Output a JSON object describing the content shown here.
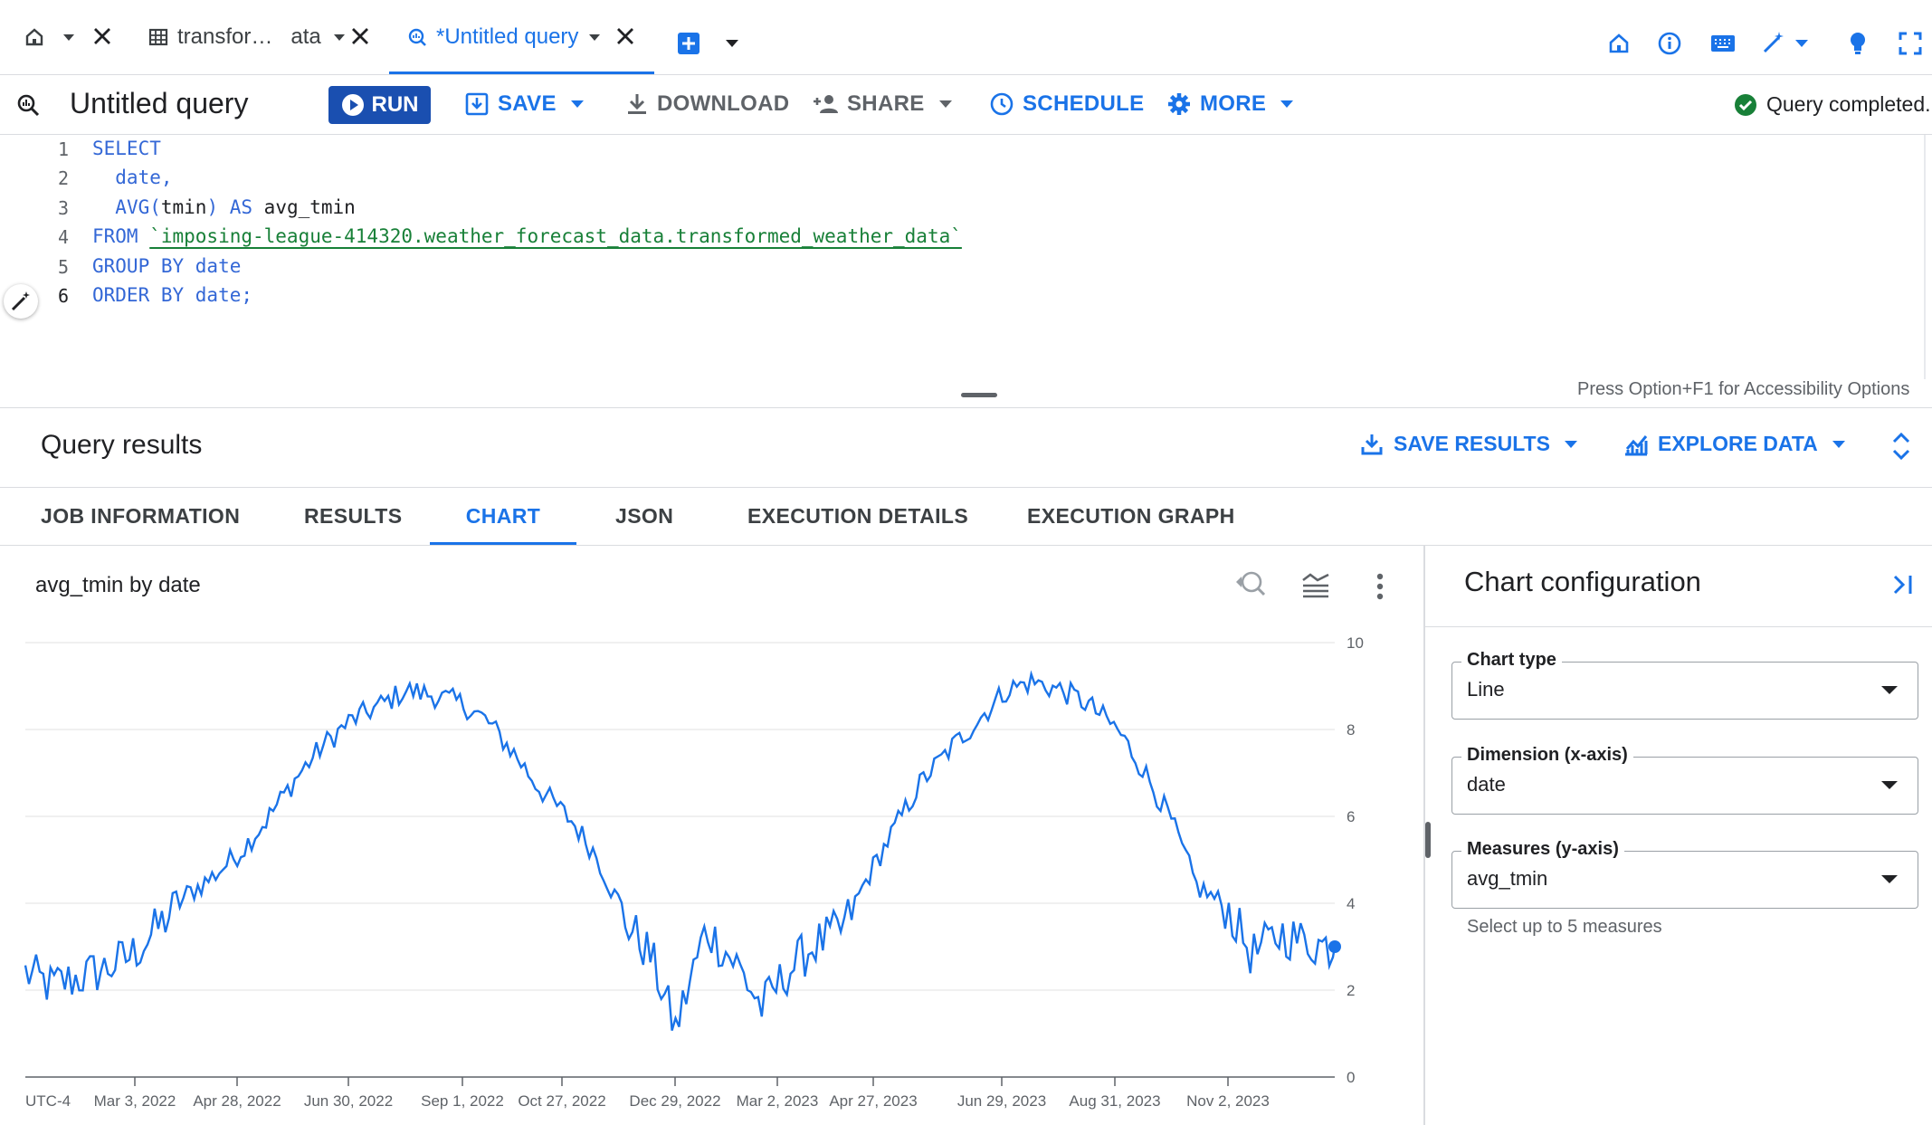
{
  "tabs": [
    {
      "label": "transfor…   ata"
    },
    {
      "label": "*Untitled query"
    }
  ],
  "toolbar": {
    "title": "Untitled query",
    "run": "RUN",
    "save": "SAVE",
    "download": "DOWNLOAD",
    "share": "SHARE",
    "schedule": "SCHEDULE",
    "more": "MORE",
    "status": "Query completed."
  },
  "editor": {
    "lines": [
      {
        "n": "1",
        "kw1": "SELECT",
        "rest": ""
      },
      {
        "n": "2",
        "text": "  date,"
      },
      {
        "n": "3",
        "text": "  AVG(tmin) AS avg_tmin"
      },
      {
        "n": "4",
        "kw1": "FROM ",
        "table": "`imposing-league-414320.weather_forecast_data.transformed_weather_data`"
      },
      {
        "n": "5",
        "text": "GROUP BY date"
      },
      {
        "n": "6",
        "text": "ORDER BY date;"
      }
    ],
    "accessibility": "Press Option+F1 for Accessibility Options"
  },
  "results": {
    "title": "Query results",
    "save_results": "SAVE RESULTS",
    "explore_data": "EXPLORE DATA",
    "tabs": [
      "JOB INFORMATION",
      "RESULTS",
      "CHART",
      "JSON",
      "EXECUTION DETAILS",
      "EXECUTION GRAPH"
    ]
  },
  "config": {
    "title": "Chart configuration",
    "chart_type_label": "Chart type",
    "chart_type_value": "Line",
    "dimension_label": "Dimension (x-axis)",
    "dimension_value": "date",
    "measures_label": "Measures (y-axis)",
    "measures_value": "avg_tmin",
    "measures_hint": "Select up to 5 measures"
  },
  "colors": {
    "accent": "#1a73e8",
    "success": "#188038",
    "line": "#1a73e8"
  },
  "chart_data": {
    "type": "line",
    "title": "avg_tmin by date",
    "timezone_label": "UTC-4",
    "x_tick_labels": [
      "Mar 3, 2022",
      "Apr 28, 2022",
      "Jun 30, 2022",
      "Sep 1, 2022",
      "Oct 27, 2022",
      "Dec 29, 2022",
      "Mar 2, 2023",
      "Apr 27, 2023",
      "Jun 29, 2023",
      "Aug 31, 2023",
      "Nov 2, 2023"
    ],
    "y_ticks": [
      0,
      2,
      4,
      6,
      8,
      10
    ],
    "ylim": [
      0,
      10
    ],
    "xlim": [
      "2022-01-01",
      "2023-12-31"
    ],
    "series": [
      {
        "values": [
          [
            "2022-01-01",
            2.4
          ],
          [
            "2022-01-15",
            2.1
          ],
          [
            "2022-02-01",
            2.3
          ],
          [
            "2022-02-15",
            2.5
          ],
          [
            "2022-03-01",
            2.8
          ],
          [
            "2022-03-15",
            3.4
          ],
          [
            "2022-04-01",
            4.2
          ],
          [
            "2022-04-15",
            4.6
          ],
          [
            "2022-05-01",
            5.2
          ],
          [
            "2022-05-15",
            5.9
          ],
          [
            "2022-06-01",
            6.9
          ],
          [
            "2022-06-15",
            7.6
          ],
          [
            "2022-07-01",
            8.2
          ],
          [
            "2022-07-15",
            8.5
          ],
          [
            "2022-08-01",
            8.9
          ],
          [
            "2022-08-15",
            8.8
          ],
          [
            "2022-09-01",
            8.6
          ],
          [
            "2022-09-15",
            8.2
          ],
          [
            "2022-10-01",
            7.4
          ],
          [
            "2022-10-15",
            6.6
          ],
          [
            "2022-11-01",
            5.9
          ],
          [
            "2022-11-15",
            5.1
          ],
          [
            "2022-12-01",
            3.6
          ],
          [
            "2022-12-15",
            2.8
          ],
          [
            "2022-12-29",
            1.1
          ],
          [
            "2023-01-15",
            3.4
          ],
          [
            "2023-02-01",
            2.6
          ],
          [
            "2023-02-15",
            1.6
          ],
          [
            "2023-03-01",
            2.4
          ],
          [
            "2023-03-15",
            3.0
          ],
          [
            "2023-04-01",
            3.4
          ],
          [
            "2023-04-15",
            4.6
          ],
          [
            "2023-05-01",
            5.8
          ],
          [
            "2023-05-15",
            6.8
          ],
          [
            "2023-06-01",
            7.6
          ],
          [
            "2023-06-15",
            8.2
          ],
          [
            "2023-07-01",
            8.9
          ],
          [
            "2023-07-15",
            9.1
          ],
          [
            "2023-08-01",
            8.9
          ],
          [
            "2023-08-15",
            8.6
          ],
          [
            "2023-09-01",
            8.0
          ],
          [
            "2023-09-15",
            7.1
          ],
          [
            "2023-10-01",
            5.9
          ],
          [
            "2023-10-15",
            4.4
          ],
          [
            "2023-11-01",
            3.9
          ],
          [
            "2023-11-15",
            2.8
          ],
          [
            "2023-12-01",
            3.3
          ],
          [
            "2023-12-15",
            3.1
          ],
          [
            "2023-12-31",
            3.0
          ]
        ]
      }
    ]
  }
}
